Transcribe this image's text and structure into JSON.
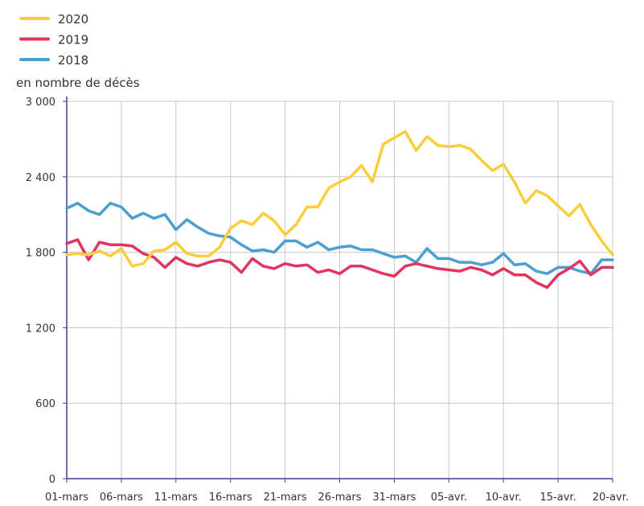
{
  "chart_data": {
    "type": "line",
    "ylabel": "en nombre de décès",
    "ylim": [
      0,
      3000
    ],
    "yticks": [
      0,
      600,
      1200,
      1800,
      2400,
      3000
    ],
    "ytick_labels": [
      "0",
      "600",
      "1 200",
      "1 800",
      "2 400",
      "3 000"
    ],
    "x_start_label": "01-mars",
    "xticks": [
      {
        "index": 0,
        "label": "01-mars"
      },
      {
        "index": 5,
        "label": "06-mars"
      },
      {
        "index": 10,
        "label": "11-mars"
      },
      {
        "index": 15,
        "label": "16-mars"
      },
      {
        "index": 20,
        "label": "21-mars"
      },
      {
        "index": 25,
        "label": "26-mars"
      },
      {
        "index": 30,
        "label": "31-mars"
      },
      {
        "index": 35,
        "label": "05-avr."
      },
      {
        "index": 40,
        "label": "10-avr."
      },
      {
        "index": 45,
        "label": "15-avr."
      },
      {
        "index": 50,
        "label": "20-avr."
      }
    ],
    "grid": true,
    "legend_position": "top-left",
    "series": [
      {
        "name": "2020",
        "color": "#f9cd3b",
        "values": [
          1780,
          1790,
          1780,
          1810,
          1770,
          1830,
          1690,
          1710,
          1810,
          1820,
          1880,
          1790,
          1770,
          1770,
          1840,
          1990,
          2050,
          2020,
          2110,
          2050,
          1940,
          2020,
          2160,
          2160,
          2310,
          2360,
          2400,
          2490,
          2360,
          2660,
          2710,
          2760,
          2610,
          2720,
          2650,
          2640,
          2650,
          2620,
          2530,
          2450,
          2500,
          2360,
          2190,
          2290,
          2250,
          2170,
          2090,
          2180,
          2020,
          1890,
          1780
        ]
      },
      {
        "name": "2019",
        "color": "#e1345f",
        "values": [
          1870,
          1900,
          1740,
          1880,
          1860,
          1860,
          1850,
          1790,
          1760,
          1680,
          1760,
          1710,
          1690,
          1720,
          1740,
          1720,
          1640,
          1750,
          1690,
          1670,
          1710,
          1690,
          1700,
          1640,
          1660,
          1630,
          1690,
          1690,
          1660,
          1630,
          1610,
          1690,
          1710,
          1690,
          1670,
          1660,
          1650,
          1680,
          1660,
          1620,
          1670,
          1620,
          1620,
          1560,
          1520,
          1620,
          1670,
          1730,
          1620,
          1680,
          1680
        ]
      },
      {
        "name": "2018",
        "color": "#4d9fd2",
        "values": [
          2150,
          2190,
          2130,
          2100,
          2190,
          2160,
          2070,
          2110,
          2070,
          2100,
          1980,
          2060,
          2000,
          1950,
          1930,
          1920,
          1860,
          1810,
          1820,
          1800,
          1890,
          1890,
          1840,
          1880,
          1820,
          1840,
          1850,
          1820,
          1820,
          1790,
          1760,
          1770,
          1720,
          1830,
          1750,
          1750,
          1720,
          1720,
          1700,
          1720,
          1790,
          1700,
          1710,
          1650,
          1630,
          1680,
          1680,
          1650,
          1630,
          1740,
          1740
        ]
      }
    ]
  }
}
